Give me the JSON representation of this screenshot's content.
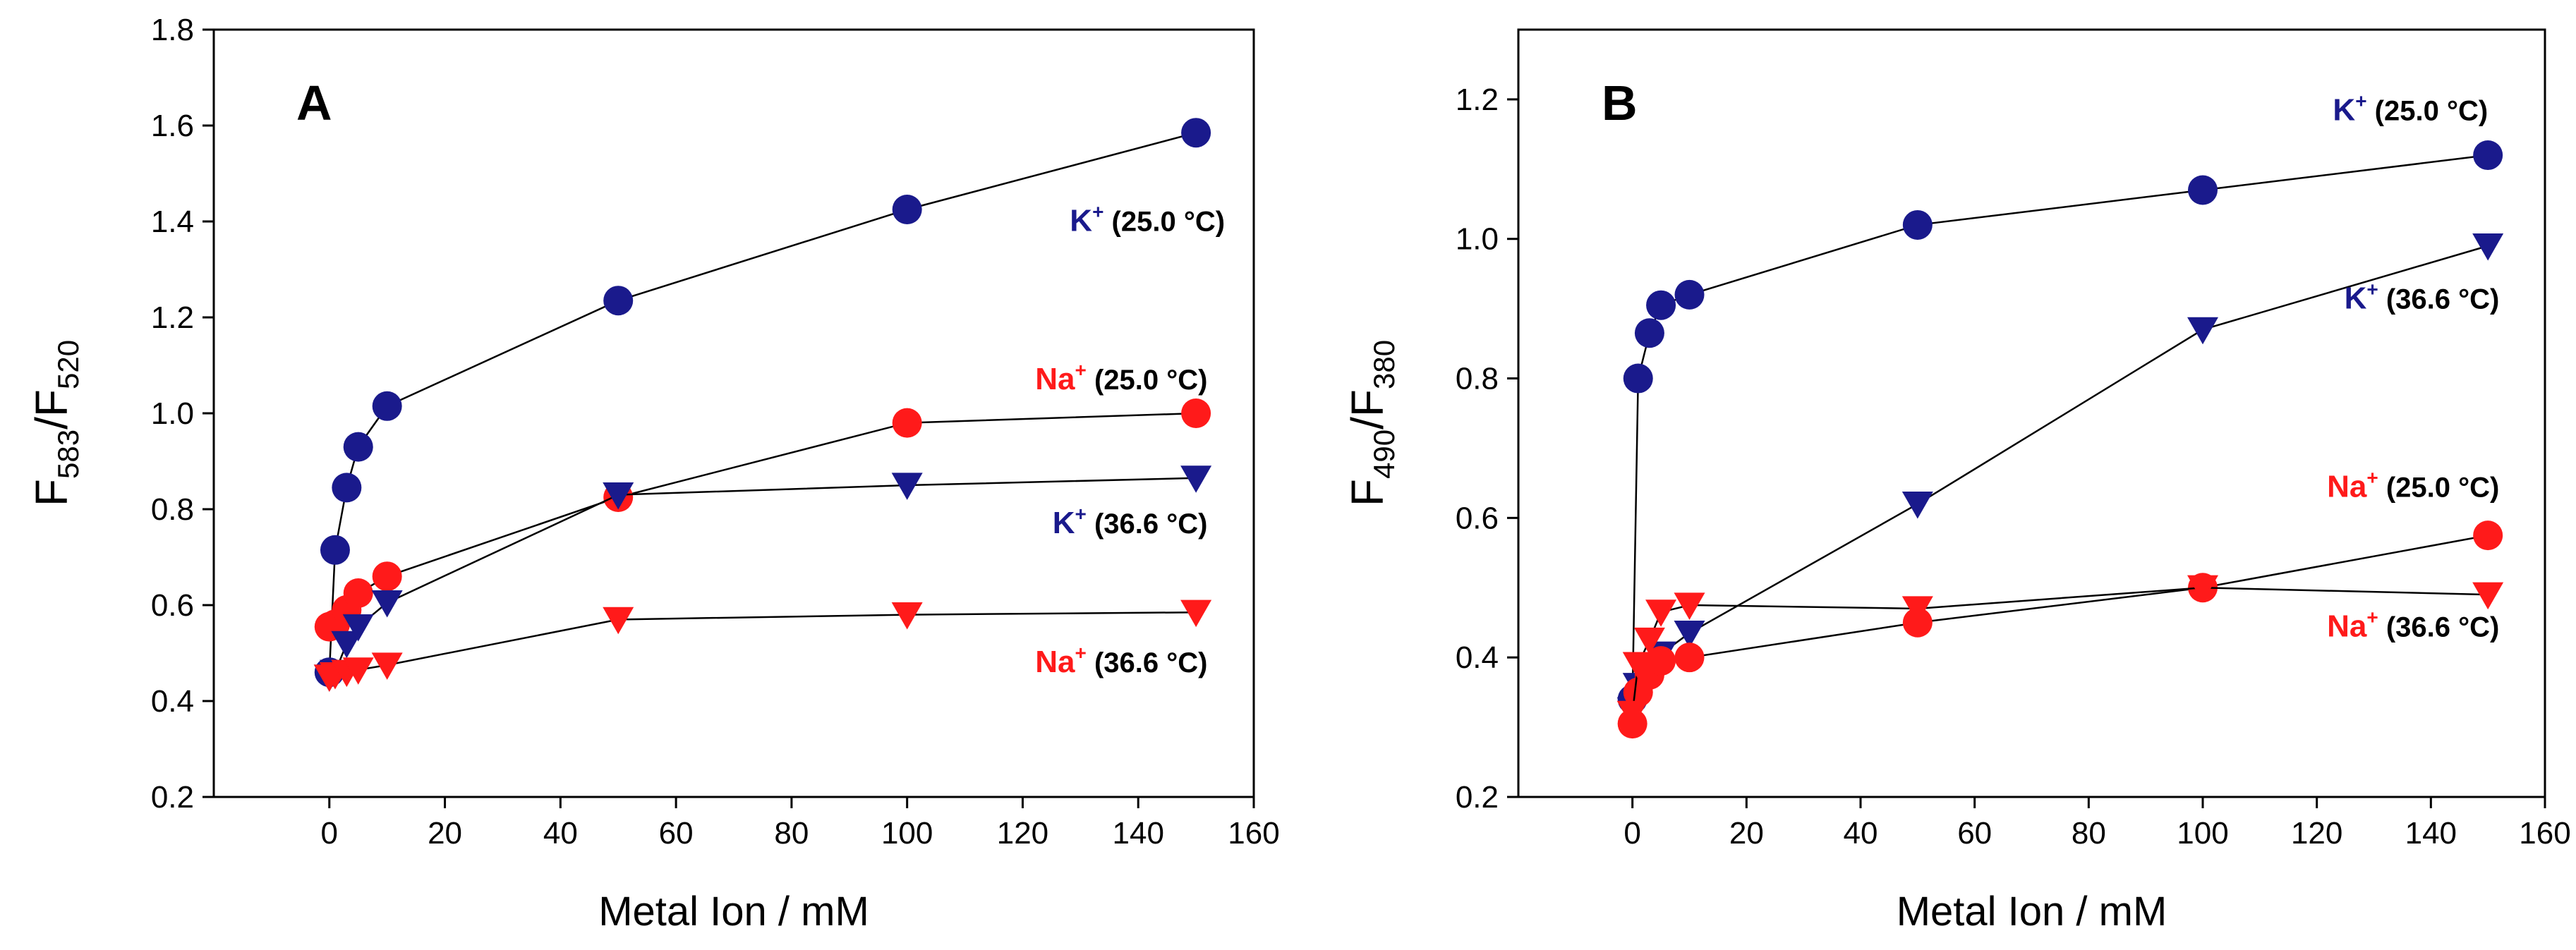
{
  "colors": {
    "navy": "#1a1a8c",
    "red": "#ff1a1a",
    "black": "#000000"
  },
  "chart_data": [
    {
      "type": "line",
      "panel": "A",
      "xlabel": "Metal Ion / mM",
      "ylabel_main": "F",
      "ylabel_sub1": "583",
      "ylabel_sep": "/F",
      "ylabel_sub2": "520",
      "xlim": [
        -20,
        160
      ],
      "ylim": [
        0.2,
        1.8
      ],
      "xticks": [
        0,
        20,
        40,
        60,
        80,
        100,
        120,
        140,
        160
      ],
      "yticks": [
        0.2,
        0.4,
        0.6,
        0.8,
        1.0,
        1.2,
        1.4,
        1.6,
        1.8
      ],
      "ytick_labels": [
        "0.2",
        "0.4",
        "0.6",
        "0.8",
        "1.0",
        "1.2",
        "1.4",
        "1.6",
        "1.8"
      ],
      "series": [
        {
          "ion": "K",
          "charge": "+",
          "temp": " (25.0 °C)",
          "color": "navy",
          "marker": "circle",
          "x": [
            0,
            1,
            3,
            5,
            10,
            50,
            100,
            150
          ],
          "y": [
            0.46,
            0.715,
            0.845,
            0.93,
            1.015,
            1.235,
            1.425,
            1.585
          ],
          "label_pos": [
            155,
            1.38
          ]
        },
        {
          "ion": "Na",
          "charge": "+",
          "temp": " (25.0 °C)",
          "color": "red",
          "marker": "circle",
          "x": [
            0,
            1,
            3,
            5,
            10,
            50,
            100,
            150
          ],
          "y": [
            0.555,
            0.56,
            0.59,
            0.625,
            0.66,
            0.825,
            0.98,
            1.0
          ],
          "label_pos": [
            152,
            1.05
          ]
        },
        {
          "ion": "K",
          "charge": "+",
          "temp": " (36.6 °C)",
          "color": "navy",
          "marker": "triangle",
          "x": [
            0,
            1,
            3,
            5,
            10,
            50,
            100,
            150
          ],
          "y": [
            0.45,
            0.46,
            0.52,
            0.555,
            0.605,
            0.83,
            0.85,
            0.865
          ],
          "label_pos": [
            152,
            0.75
          ]
        },
        {
          "ion": "Na",
          "charge": "+",
          "temp": " (36.6 °C)",
          "color": "red",
          "marker": "triangle",
          "x": [
            0,
            1,
            3,
            5,
            10,
            50,
            100,
            150
          ],
          "y": [
            0.45,
            0.455,
            0.46,
            0.465,
            0.475,
            0.57,
            0.58,
            0.585
          ],
          "label_pos": [
            152,
            0.46
          ]
        }
      ]
    },
    {
      "type": "line",
      "panel": "B",
      "xlabel": "Metal Ion / mM",
      "ylabel_main": "F",
      "ylabel_sub1": "490",
      "ylabel_sep": "/F",
      "ylabel_sub2": "380",
      "xlim": [
        -20,
        160
      ],
      "ylim": [
        0.2,
        1.3
      ],
      "xticks": [
        0,
        20,
        40,
        60,
        80,
        100,
        120,
        140,
        160
      ],
      "yticks": [
        0.2,
        0.4,
        0.6,
        0.8,
        1.0,
        1.2
      ],
      "ytick_labels": [
        "0.2",
        "0.4",
        "0.6",
        "0.8",
        "1.0",
        "1.2"
      ],
      "series": [
        {
          "ion": "K",
          "charge": "+",
          "temp": " (25.0 °C)",
          "color": "navy",
          "marker": "circle",
          "x": [
            0,
            1,
            3,
            5,
            10,
            50,
            100,
            150
          ],
          "y": [
            0.34,
            0.8,
            0.865,
            0.905,
            0.92,
            1.02,
            1.07,
            1.12
          ],
          "label_pos": [
            150,
            1.17
          ]
        },
        {
          "ion": "K",
          "charge": "+",
          "temp": " (36.6 °C)",
          "color": "navy",
          "marker": "triangle",
          "x": [
            0,
            1,
            3,
            5,
            10,
            50,
            100,
            150
          ],
          "y": [
            0.325,
            0.36,
            0.385,
            0.405,
            0.435,
            0.62,
            0.87,
            0.99
          ],
          "label_pos": [
            152,
            0.9
          ]
        },
        {
          "ion": "Na",
          "charge": "+",
          "temp": " (25.0 °C)",
          "color": "red",
          "marker": "circle",
          "x": [
            0,
            1,
            3,
            5,
            10,
            50,
            100,
            150
          ],
          "y": [
            0.305,
            0.35,
            0.375,
            0.395,
            0.4,
            0.45,
            0.5,
            0.575
          ],
          "label_pos": [
            152,
            0.63
          ]
        },
        {
          "ion": "Na",
          "charge": "+",
          "temp": " (36.6 °C)",
          "color": "red",
          "marker": "triangle",
          "x": [
            0,
            1,
            3,
            5,
            10,
            50,
            100,
            150
          ],
          "y": [
            0.32,
            0.39,
            0.425,
            0.465,
            0.475,
            0.47,
            0.5,
            0.49
          ],
          "label_pos": [
            152,
            0.43
          ]
        }
      ]
    }
  ]
}
